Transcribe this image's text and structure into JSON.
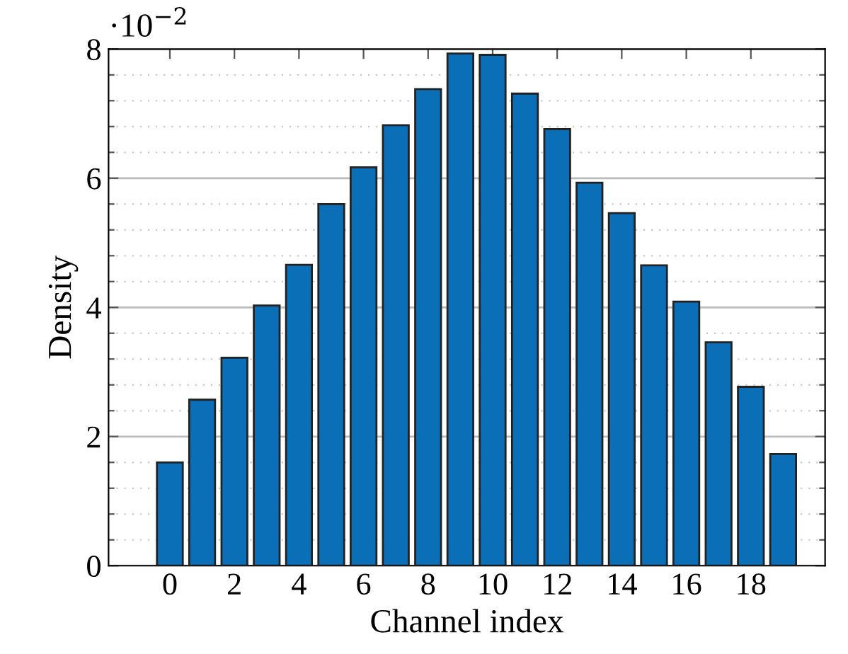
{
  "chart_data": {
    "type": "bar",
    "xlabel": "Channel index",
    "ylabel": "Density",
    "annotations": [
      "·10$^{−2}$"
    ],
    "x": [
      0,
      1,
      2,
      3,
      4,
      5,
      6,
      7,
      8,
      9,
      10,
      11,
      12,
      13,
      14,
      15,
      16,
      17,
      18,
      19
    ],
    "values": [
      1.6,
      2.57,
      3.22,
      4.03,
      4.66,
      5.6,
      6.17,
      6.82,
      7.38,
      7.93,
      7.91,
      7.31,
      6.76,
      5.93,
      5.46,
      4.65,
      4.09,
      3.46,
      2.77,
      1.73
    ],
    "color": "#0b6fb8",
    "xlim": [
      -1.9,
      20.3
    ],
    "xticks": [
      0,
      2,
      4,
      6,
      8,
      10,
      12,
      14,
      16,
      18
    ],
    "ylim": [
      0,
      8
    ],
    "yticks": [
      0,
      {
        "value": 0.4,
        "label": null
      },
      {
        "value": 0.8,
        "label": null
      },
      {
        "value": 1.2,
        "label": null
      },
      {
        "value": 1.6,
        "label": null
      },
      2,
      {
        "value": 2.4,
        "label": null
      },
      {
        "value": 2.8,
        "label": null
      },
      {
        "value": 3.2,
        "label": null
      },
      {
        "value": 3.6,
        "label": null
      },
      4,
      {
        "value": 4.4,
        "label": null
      },
      {
        "value": 4.8,
        "label": null
      },
      {
        "value": 5.2,
        "label": null
      },
      {
        "value": 5.6,
        "label": null
      },
      6,
      {
        "value": 6.4,
        "label": null
      },
      {
        "value": 6.8,
        "label": null
      },
      {
        "value": 7.2,
        "label": null
      },
      {
        "value": 7.6,
        "label": null
      },
      8
    ],
    "grid": "y"
  }
}
